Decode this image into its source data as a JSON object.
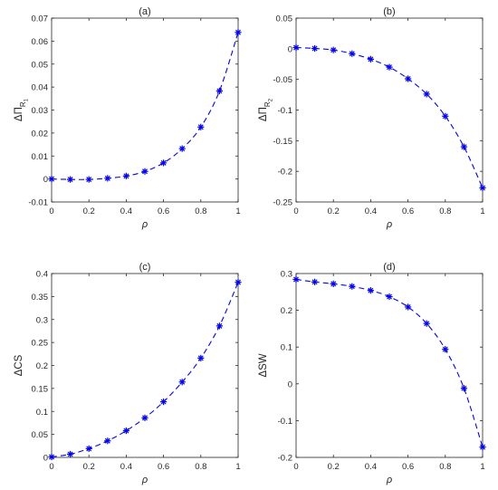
{
  "chart_data": [
    {
      "type": "line",
      "title": "(a)",
      "xlabel": "ρ",
      "ylabel": {
        "base": "ΔΠ",
        "sub": "R",
        "subsub": "1"
      },
      "xlim": [
        0,
        1
      ],
      "ylim": [
        -0.01,
        0.07
      ],
      "xticks": [
        "0",
        "0.2",
        "0.4",
        "0.6",
        "0.8",
        "1"
      ],
      "yticks": [
        "-0.01",
        "0",
        "0.01",
        "0.02",
        "0.03",
        "0.04",
        "0.05",
        "0.06",
        "0.07"
      ],
      "series": [
        {
          "style": "dashed line with asterisk markers",
          "x": [
            0,
            0.1,
            0.2,
            0.3,
            0.4,
            0.5,
            0.6,
            0.7,
            0.8,
            0.9,
            1.0
          ],
          "y": [
            0,
            -0.0002,
            -0.0002,
            0.0003,
            0.0013,
            0.0033,
            0.007,
            0.0132,
            0.0226,
            0.0383,
            0.0638
          ]
        }
      ],
      "color": "#0000ff"
    },
    {
      "type": "line",
      "title": "(b)",
      "xlabel": "ρ",
      "ylabel": {
        "base": "ΔΠ",
        "sub": "R",
        "subsub": "2"
      },
      "xlim": [
        0,
        1
      ],
      "ylim": [
        -0.25,
        0.05
      ],
      "xticks": [
        "0",
        "0.2",
        "0.4",
        "0.6",
        "0.8",
        "1"
      ],
      "yticks": [
        "-0.25",
        "-0.2",
        "-0.15",
        "-0.1",
        "-0.05",
        "0",
        "0.05"
      ],
      "series": [
        {
          "style": "dashed line with asterisk markers",
          "x": [
            0,
            0.1,
            0.2,
            0.3,
            0.4,
            0.5,
            0.6,
            0.7,
            0.8,
            0.9,
            1.0
          ],
          "y": [
            0.002,
            0.0005,
            -0.002,
            -0.008,
            -0.017,
            -0.03,
            -0.049,
            -0.074,
            -0.11,
            -0.16,
            -0.227
          ]
        }
      ],
      "color": "#0000ff"
    },
    {
      "type": "line",
      "title": "(c)",
      "xlabel": "ρ",
      "ylabel": {
        "base": "ΔCS"
      },
      "xlim": [
        0,
        1
      ],
      "ylim": [
        0,
        0.4
      ],
      "xticks": [
        "0",
        "0.2",
        "0.4",
        "0.6",
        "0.8",
        "1"
      ],
      "yticks": [
        "0",
        "0.05",
        "0.1",
        "0.15",
        "0.2",
        "0.25",
        "0.3",
        "0.35",
        "0.4"
      ],
      "series": [
        {
          "style": "dashed line with asterisk markers",
          "x": [
            0,
            0.1,
            0.2,
            0.3,
            0.4,
            0.5,
            0.6,
            0.7,
            0.8,
            0.9,
            1.0
          ],
          "y": [
            0.001,
            0.007,
            0.019,
            0.036,
            0.058,
            0.086,
            0.121,
            0.164,
            0.216,
            0.286,
            0.381
          ]
        }
      ],
      "color": "#0000ff"
    },
    {
      "type": "line",
      "title": "(d)",
      "xlabel": "ρ",
      "ylabel": {
        "base": "ΔSW"
      },
      "xlim": [
        0,
        1
      ],
      "ylim": [
        -0.2,
        0.3
      ],
      "xticks": [
        "0",
        "0.2",
        "0.4",
        "0.6",
        "0.8",
        "1"
      ],
      "yticks": [
        "-0.2",
        "-0.1",
        "0",
        "0.1",
        "0.2",
        "0.3"
      ],
      "series": [
        {
          "style": "dashed line with asterisk markers",
          "x": [
            0,
            0.1,
            0.2,
            0.3,
            0.4,
            0.5,
            0.6,
            0.7,
            0.8,
            0.9,
            1.0
          ],
          "y": [
            0.284,
            0.277,
            0.272,
            0.265,
            0.254,
            0.237,
            0.209,
            0.164,
            0.094,
            -0.012,
            -0.172
          ]
        }
      ],
      "color": "#0000ff"
    }
  ]
}
